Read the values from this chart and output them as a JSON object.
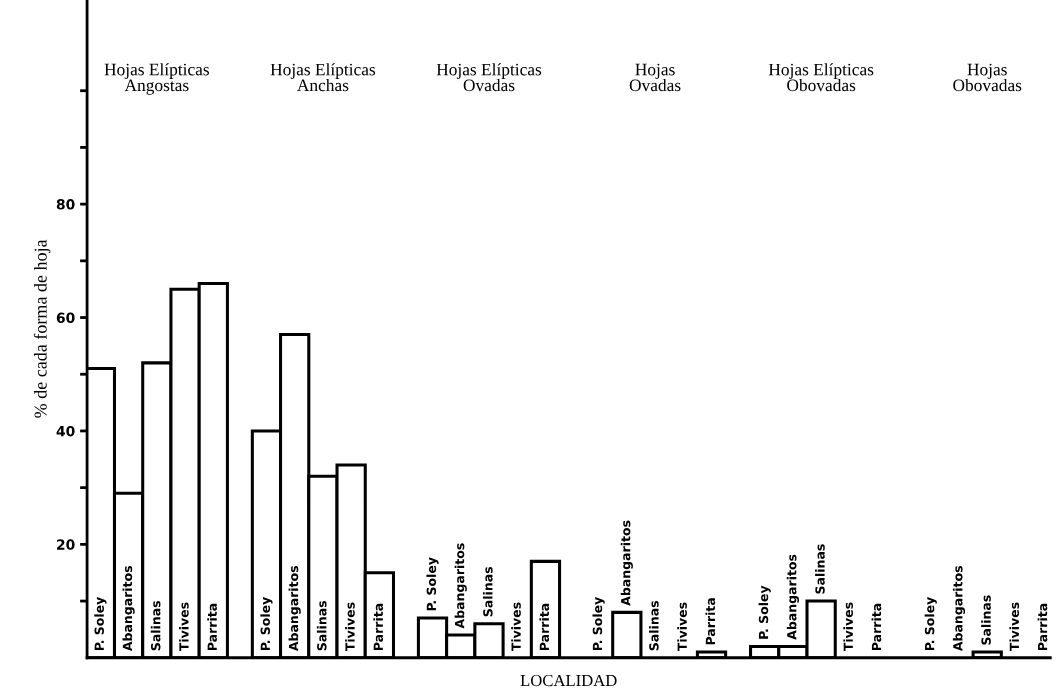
{
  "chart_data": {
    "type": "bar",
    "categories": [
      "Hojas Elípticas\nAngostas",
      "Hojas Elípticas\nAnchas",
      "Hojas Elípticas\nOvadas",
      "Hojas\nOvadas",
      "Hojas Elípticas\nObovadas",
      "Hojas\nObovadas"
    ],
    "series": [
      {
        "name": "P. Soley",
        "color": "#ffffff",
        "values": [
          51,
          40,
          7,
          0,
          2,
          0
        ]
      },
      {
        "name": "Abangaritos",
        "color": "#ffffff",
        "values": [
          29,
          57,
          4,
          8,
          2,
          0
        ]
      },
      {
        "name": "Salinas",
        "color": "#ffffff",
        "values": [
          52,
          32,
          6,
          0,
          10,
          1
        ]
      },
      {
        "name": "Tivives",
        "color": "#ffffff",
        "values": [
          65,
          34,
          0,
          0,
          0,
          0
        ]
      },
      {
        "name": "Parrita",
        "color": "#ffffff",
        "values": [
          66,
          15,
          17,
          1,
          0,
          0
        ]
      }
    ],
    "xlabel": "LOCALIDAD",
    "ylabel": "% de cada forma de hoja",
    "ylim": [
      0,
      116
    ],
    "yticks": [
      {
        "value": 10,
        "label": null
      },
      20,
      {
        "value": 30,
        "label": null
      },
      40,
      {
        "value": 50,
        "label": null
      },
      60,
      {
        "value": 70,
        "label": null
      },
      80,
      {
        "value": 90,
        "label": null
      },
      {
        "value": 100,
        "label": null
      }
    ],
    "grid": false,
    "legend": false
  }
}
